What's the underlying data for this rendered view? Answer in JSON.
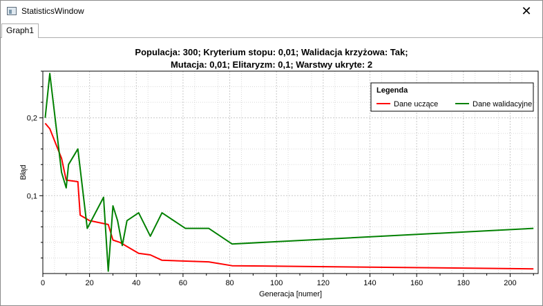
{
  "window": {
    "title": "StatisticsWindow"
  },
  "tabs": [
    {
      "label": "Graph1"
    }
  ],
  "chart_data": {
    "type": "line",
    "title_line1": "Populacja: 300; Kryterium stopu: 0,01; Walidacja krzyżowa: Tak;",
    "title_line2": "Mutacja: 0,01; Elitaryzm: 0,1; Warstwy ukryte: 2",
    "xlabel": "Generacja [numer]",
    "ylabel": "Błąd",
    "xlim": [
      0,
      212
    ],
    "ylim": [
      0.0,
      0.26
    ],
    "x_ticks": [
      0,
      20,
      40,
      60,
      80,
      100,
      120,
      140,
      160,
      180,
      200
    ],
    "y_ticks": [
      0.1,
      0.2
    ],
    "y_tick_labels": [
      "0,1",
      "0,2"
    ],
    "grid": true,
    "legend": {
      "title": "Legenda",
      "placement": "top-right"
    },
    "series": [
      {
        "name": "Dane uczące",
        "color": "#ff0000",
        "x": [
          1,
          3,
          8,
          10,
          15,
          16,
          20,
          28,
          30,
          33,
          41,
          46,
          51,
          71,
          81,
          210
        ],
        "y": [
          0.193,
          0.186,
          0.148,
          0.12,
          0.118,
          0.075,
          0.068,
          0.063,
          0.043,
          0.04,
          0.026,
          0.024,
          0.017,
          0.015,
          0.01,
          0.006
        ]
      },
      {
        "name": "Dane walidacyjne",
        "color": "#008000",
        "x": [
          1,
          3,
          8,
          10,
          11,
          15,
          19,
          26,
          28,
          30,
          32,
          34,
          36,
          41,
          46,
          51,
          61,
          71,
          81,
          210
        ],
        "y": [
          0.2,
          0.257,
          0.13,
          0.11,
          0.14,
          0.16,
          0.058,
          0.098,
          0.003,
          0.087,
          0.068,
          0.036,
          0.068,
          0.078,
          0.048,
          0.078,
          0.058,
          0.058,
          0.038,
          0.058
        ]
      }
    ]
  }
}
